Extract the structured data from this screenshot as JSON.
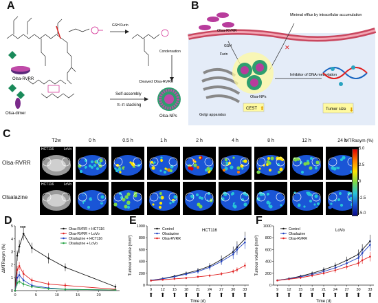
{
  "panels": {
    "A": "A",
    "B": "B",
    "C": "C",
    "D": "D",
    "E": "E",
    "F": "F"
  },
  "panelA": {
    "reagent": "GSH\nFurin",
    "condensation": "Condensation",
    "selfassembly": "Self-assembly",
    "pistacking": "π–π stacking",
    "olsa_rvrr": "Olsa-RVRR",
    "cleaved": "Cleaved\nOlsa-RVRR",
    "olsa_dimer": "Olsa-dimer",
    "olsa_nps": "Olsa-NPs"
  },
  "panelB": {
    "olsa_rvrr": "Olsa-RVRR",
    "minimal_efflux": "Minimal efflux by\nintracellular accumulation",
    "gsh": "GSH",
    "furin": "Furin",
    "inhibitor": "Inhibitor of DNA\nmethylation",
    "golgi": "Golgi apparatus",
    "olsa_nps": "Olsa-NPs",
    "cest": "CEST",
    "tumor_size": "Tumor size"
  },
  "panelC": {
    "t2w": "T2w",
    "times": [
      "0 h",
      "0.5 h",
      "1 h",
      "2 h",
      "4 h",
      "8 h",
      "12 h",
      "24 h"
    ],
    "rows": [
      "Olsa-RVRR",
      "Olsalazine"
    ],
    "cell_left": "HCT116",
    "cell_right": "LoVo",
    "colorbar_title": "MTRasym (%)",
    "colorbar_ticks": [
      "5.0",
      "2.5",
      "0",
      "-2.5",
      "-5.0"
    ]
  },
  "chart_data": [
    {
      "type": "line",
      "panel": "D",
      "ylabel": "ΔMTRasym (%)",
      "xlabel": "",
      "xlim": [
        0,
        25
      ],
      "ylim": [
        0,
        5
      ],
      "xticks": [
        0,
        5,
        10,
        15,
        20
      ],
      "yticks": [
        0,
        1,
        2,
        3,
        4,
        5
      ],
      "annotation": "***",
      "x": [
        0,
        0.5,
        1,
        2,
        4,
        8,
        12,
        24
      ],
      "series": [
        {
          "name": "Olsa-RVRR + HCT116",
          "color": "#111111",
          "values": [
            0,
            2.7,
            3.4,
            4.4,
            3.3,
            2.5,
            1.8,
            0.3
          ],
          "err": [
            0,
            0.4,
            0.5,
            0.5,
            0.4,
            0.4,
            0.3,
            0.2
          ]
        },
        {
          "name": "Olsa-RVRR + LoVo",
          "color": "#e02020",
          "values": [
            0,
            1.6,
            1.9,
            1.3,
            0.8,
            0.5,
            0.4,
            0.1
          ],
          "err": [
            0,
            0.3,
            0.3,
            0.3,
            0.2,
            0.2,
            0.2,
            0.1
          ]
        },
        {
          "name": "Olsalazine + HCT116",
          "color": "#2040c0",
          "values": [
            0,
            1.0,
            1.2,
            0.8,
            0.4,
            0.2,
            0.1,
            0.05
          ],
          "err": [
            0,
            0.3,
            0.3,
            0.2,
            0.2,
            0.1,
            0.1,
            0.05
          ]
        },
        {
          "name": "Olsalazine + LoVo",
          "color": "#20a040",
          "values": [
            0,
            0.6,
            0.7,
            0.5,
            0.3,
            0.15,
            0.1,
            0.05
          ],
          "err": [
            0,
            0.2,
            0.2,
            0.2,
            0.1,
            0.1,
            0.1,
            0.05
          ]
        }
      ]
    },
    {
      "type": "line",
      "panel": "E",
      "title": "HCT116",
      "xlabel": "Time (d)",
      "ylabel": "Tumour volume (mm³)",
      "xlim": [
        8,
        34
      ],
      "ylim": [
        0,
        1000
      ],
      "xticks": [
        9,
        12,
        15,
        18,
        21,
        24,
        27,
        30,
        33
      ],
      "yticks": [
        0,
        200,
        400,
        600,
        800,
        1000
      ],
      "arrows_at": [
        9,
        12,
        15,
        18,
        21,
        24,
        27,
        30,
        33
      ],
      "x": [
        9,
        12,
        15,
        18,
        21,
        24,
        27,
        30,
        31,
        33
      ],
      "series": [
        {
          "name": "Control",
          "color": "#111111",
          "values": [
            80,
            110,
            150,
            200,
            250,
            320,
            430,
            560,
            640,
            780
          ],
          "err": [
            15,
            20,
            25,
            30,
            40,
            50,
            70,
            90,
            100,
            120
          ]
        },
        {
          "name": "Olsalazine",
          "color": "#2040c0",
          "values": [
            80,
            105,
            140,
            185,
            230,
            300,
            400,
            520,
            600,
            720
          ],
          "err": [
            15,
            20,
            25,
            30,
            40,
            50,
            60,
            80,
            90,
            110
          ]
        },
        {
          "name": "Olsa-RVRR",
          "color": "#e02020",
          "values": [
            75,
            90,
            105,
            120,
            140,
            160,
            190,
            230,
            260,
            330
          ],
          "err": [
            10,
            15,
            15,
            20,
            20,
            25,
            30,
            35,
            40,
            50
          ]
        }
      ]
    },
    {
      "type": "line",
      "panel": "F",
      "title": "LoVo",
      "xlabel": "Time (d)",
      "ylabel": "Tumour volume (mm³)",
      "xlim": [
        8,
        34
      ],
      "ylim": [
        0,
        1000
      ],
      "xticks": [
        9,
        12,
        15,
        18,
        21,
        24,
        27,
        30,
        33
      ],
      "yticks": [
        0,
        200,
        400,
        600,
        800,
        1000
      ],
      "arrows_at": [
        9,
        12,
        15,
        18,
        21,
        24,
        27,
        30,
        33
      ],
      "x": [
        9,
        12,
        15,
        18,
        21,
        24,
        27,
        30,
        31,
        33
      ],
      "series": [
        {
          "name": "Control",
          "color": "#111111",
          "values": [
            80,
            110,
            150,
            200,
            260,
            330,
            420,
            520,
            600,
            740
          ],
          "err": [
            15,
            20,
            25,
            30,
            40,
            50,
            60,
            80,
            90,
            110
          ]
        },
        {
          "name": "Olsalazine",
          "color": "#2040c0",
          "values": [
            80,
            105,
            140,
            180,
            230,
            290,
            370,
            460,
            540,
            680
          ],
          "err": [
            15,
            20,
            25,
            30,
            40,
            50,
            60,
            70,
            80,
            100
          ]
        },
        {
          "name": "Olsa-RVRR",
          "color": "#e02020",
          "values": [
            78,
            100,
            125,
            160,
            200,
            250,
            310,
            370,
            420,
            480
          ],
          "err": [
            10,
            15,
            20,
            25,
            30,
            40,
            45,
            55,
            60,
            80
          ]
        }
      ]
    }
  ]
}
